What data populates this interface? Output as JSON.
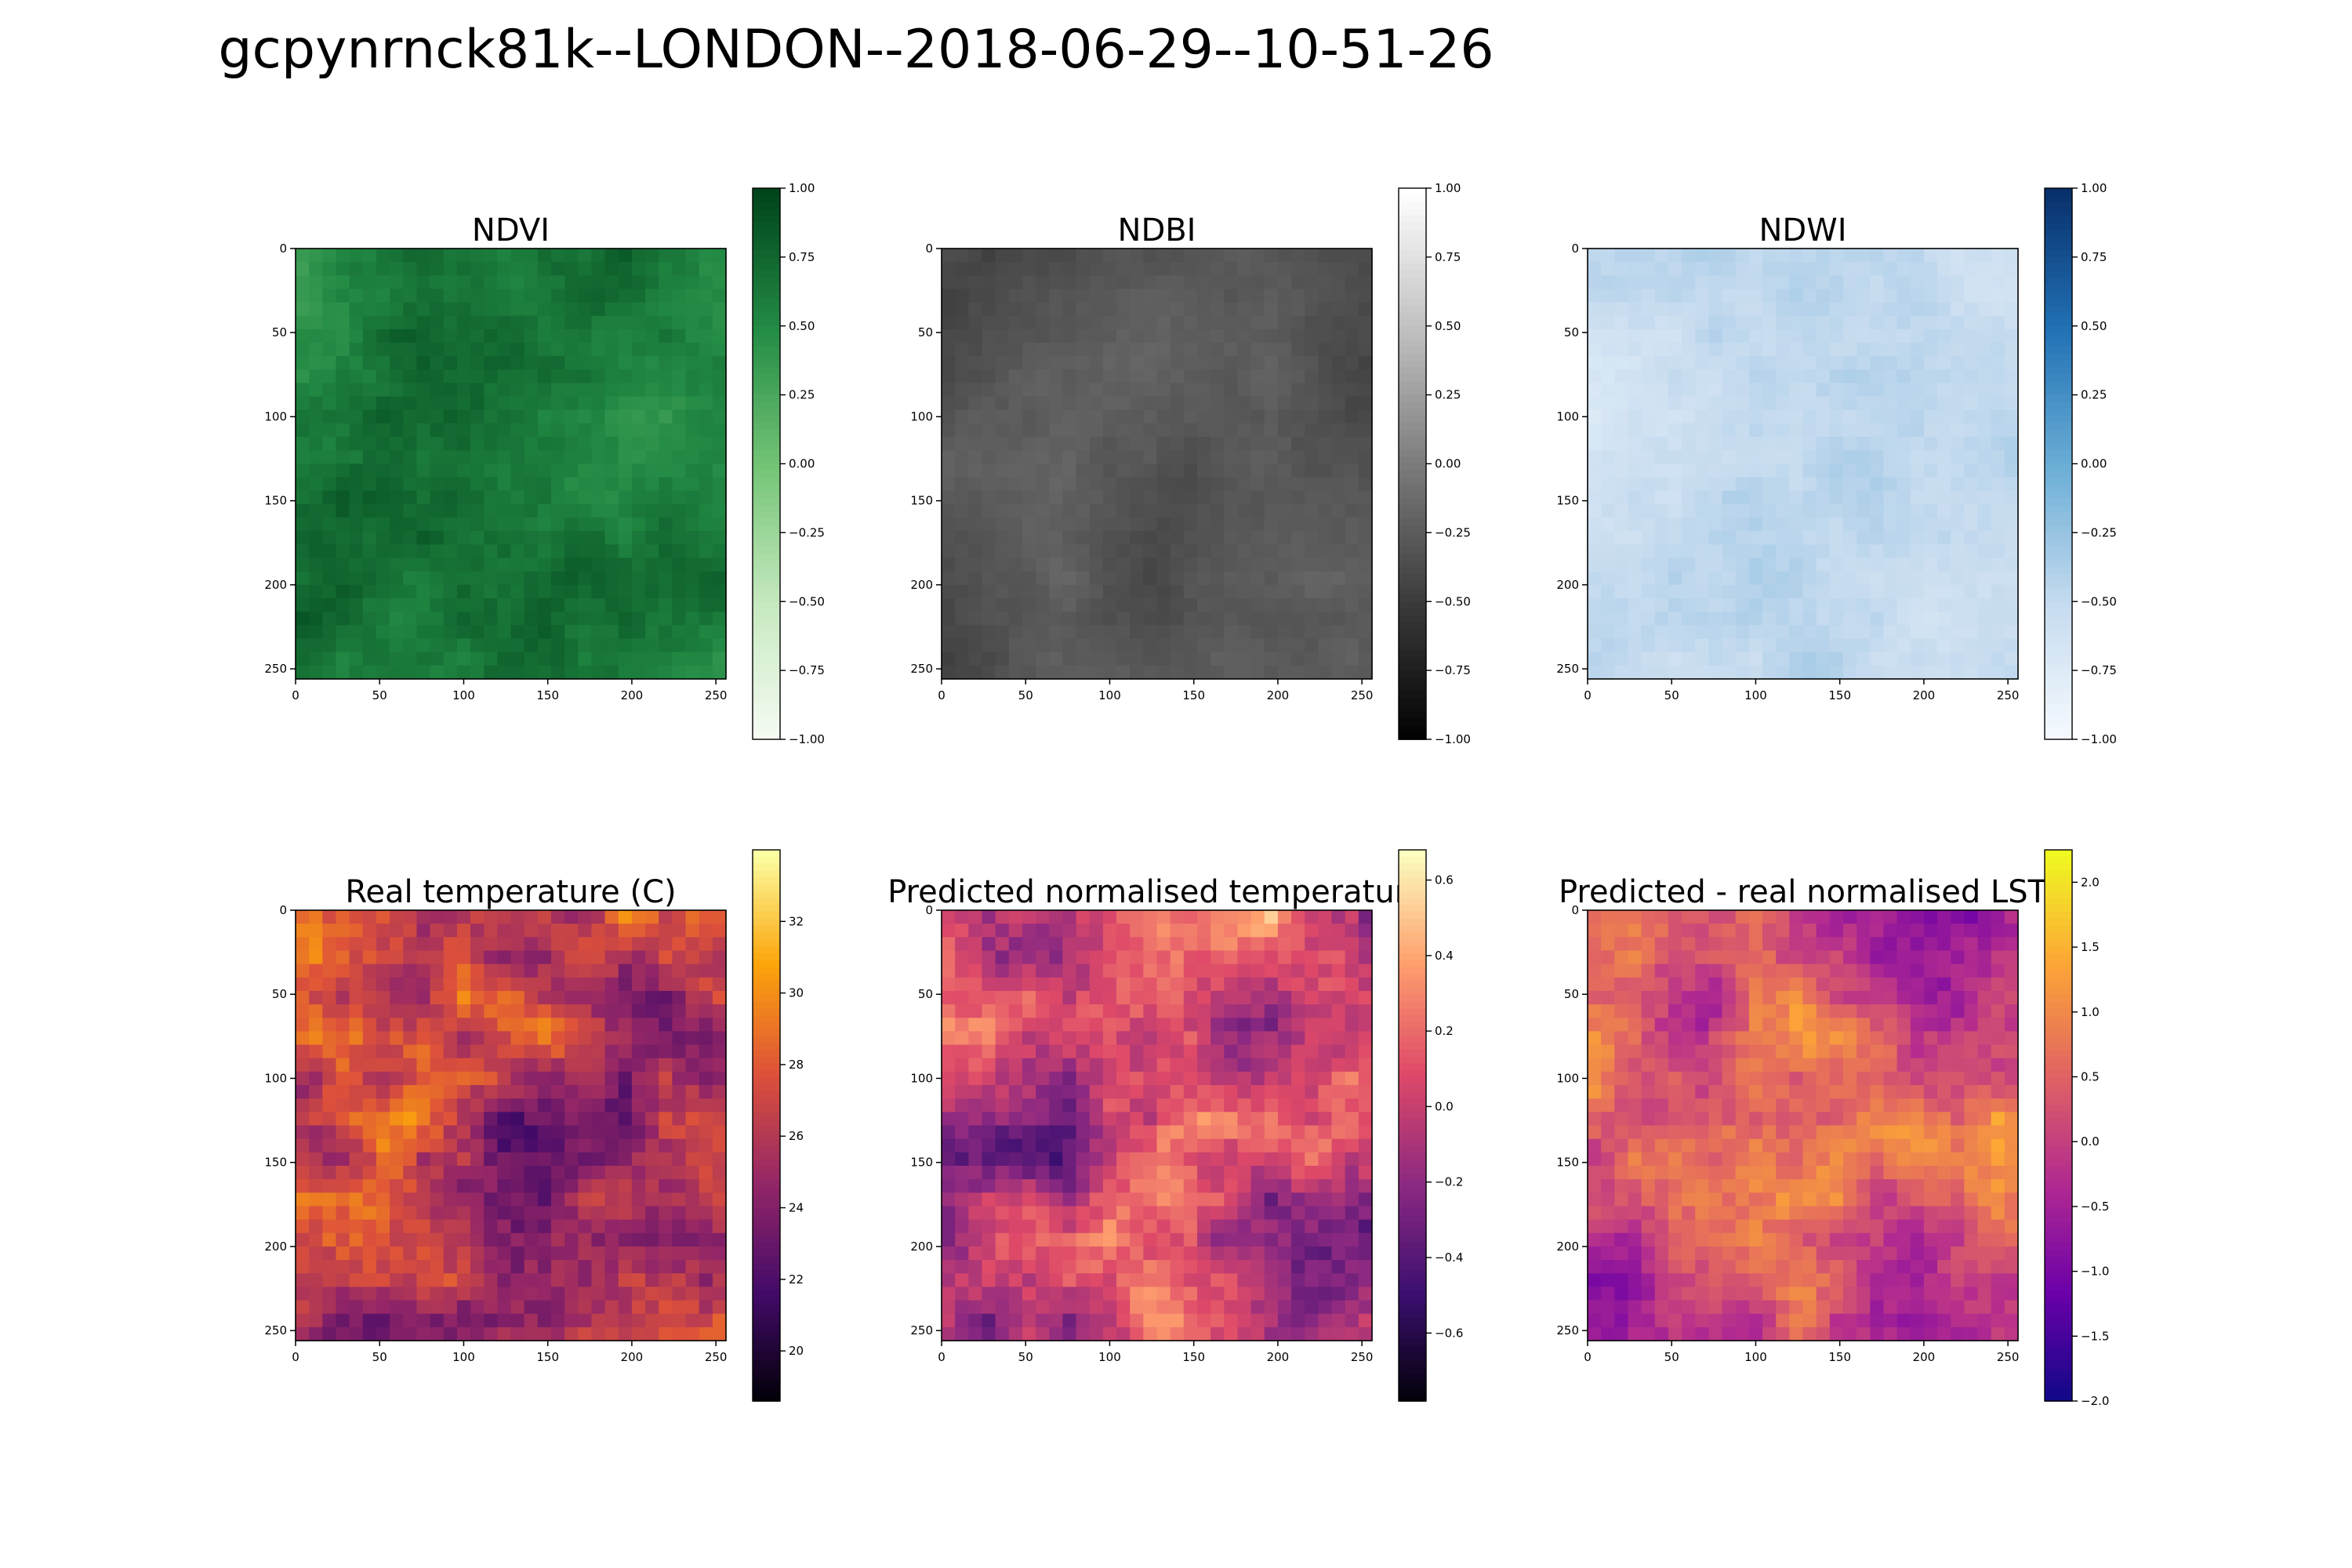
{
  "figure": {
    "title": "gcpynrnck81k--LONDON--2018-06-29--10-51-26"
  },
  "chart_data": [
    {
      "type": "heatmap",
      "title": "NDVI",
      "colormap": "Greens",
      "x_ticks": [
        "0",
        "50",
        "100",
        "150",
        "200",
        "250"
      ],
      "y_ticks": [
        "0",
        "50",
        "100",
        "150",
        "200",
        "250"
      ],
      "xlim": [
        0,
        256
      ],
      "ylim": [
        256,
        0
      ],
      "colorbar_range": [
        -1.0,
        1.0
      ],
      "colorbar_ticks": [
        "1.00",
        "0.75",
        "0.50",
        "0.25",
        "0.00",
        "−0.25",
        "−0.50",
        "−0.75",
        "−1.00"
      ],
      "colorbar_values": [
        1.0,
        0.75,
        0.5,
        0.25,
        0.0,
        -0.25,
        -0.5,
        -0.75,
        -1.0
      ],
      "typical_range": [
        0.2,
        0.95
      ]
    },
    {
      "type": "heatmap",
      "title": "NDBI",
      "colormap": "Greys_r",
      "x_ticks": [
        "0",
        "50",
        "100",
        "150",
        "200",
        "250"
      ],
      "y_ticks": [
        "0",
        "50",
        "100",
        "150",
        "200",
        "250"
      ],
      "xlim": [
        0,
        256
      ],
      "ylim": [
        256,
        0
      ],
      "colorbar_range": [
        -1.0,
        1.0
      ],
      "colorbar_ticks": [
        "1.00",
        "0.75",
        "0.50",
        "0.25",
        "0.00",
        "−0.25",
        "−0.50",
        "−0.75",
        "−1.00"
      ],
      "colorbar_values": [
        1.0,
        0.75,
        0.5,
        0.25,
        0.0,
        -0.25,
        -0.5,
        -0.75,
        -1.0
      ],
      "typical_range": [
        -0.5,
        -0.1
      ]
    },
    {
      "type": "heatmap",
      "title": "NDWI",
      "colormap": "Blues",
      "x_ticks": [
        "0",
        "50",
        "100",
        "150",
        "200",
        "250"
      ],
      "y_ticks": [
        "0",
        "50",
        "100",
        "150",
        "200",
        "250"
      ],
      "xlim": [
        0,
        256
      ],
      "ylim": [
        256,
        0
      ],
      "colorbar_range": [
        -1.0,
        1.0
      ],
      "colorbar_ticks": [
        "1.00",
        "0.75",
        "0.50",
        "0.25",
        "0.00",
        "−0.25",
        "−0.50",
        "−0.75",
        "−1.00"
      ],
      "colorbar_values": [
        1.0,
        0.75,
        0.5,
        0.25,
        0.0,
        -0.25,
        -0.5,
        -0.75,
        -1.0
      ],
      "typical_range": [
        -0.8,
        -0.25
      ]
    },
    {
      "type": "heatmap",
      "title": "Real temperature (C)",
      "colormap": "inferno",
      "x_ticks": [
        "0",
        "50",
        "100",
        "150",
        "200",
        "250"
      ],
      "y_ticks": [
        "0",
        "50",
        "100",
        "150",
        "200",
        "250"
      ],
      "xlim": [
        0,
        256
      ],
      "ylim": [
        256,
        0
      ],
      "colorbar_range": [
        18.6,
        34.0
      ],
      "colorbar_ticks": [
        "32",
        "30",
        "28",
        "26",
        "24",
        "22",
        "20"
      ],
      "colorbar_values": [
        32,
        30,
        28,
        26,
        24,
        22,
        20
      ],
      "typical_range": [
        19,
        33
      ]
    },
    {
      "type": "heatmap",
      "title": "Predicted normalised temperature",
      "colormap": "magma",
      "x_ticks": [
        "0",
        "50",
        "100",
        "150",
        "200",
        "250"
      ],
      "y_ticks": [
        "0",
        "50",
        "100",
        "150",
        "200",
        "250"
      ],
      "xlim": [
        0,
        256
      ],
      "ylim": [
        256,
        0
      ],
      "colorbar_range": [
        -0.78,
        0.68
      ],
      "colorbar_ticks": [
        "0.6",
        "0.4",
        "0.2",
        "0.0",
        "−0.2",
        "−0.4",
        "−0.6"
      ],
      "colorbar_values": [
        0.6,
        0.4,
        0.2,
        0.0,
        -0.2,
        -0.4,
        -0.6
      ],
      "typical_range": [
        -0.7,
        0.6
      ]
    },
    {
      "type": "heatmap",
      "title": "Predicted - real normalised LST",
      "colormap": "plasma",
      "x_ticks": [
        "0",
        "50",
        "100",
        "150",
        "200",
        "250"
      ],
      "y_ticks": [
        "0",
        "50",
        "100",
        "150",
        "200",
        "250"
      ],
      "xlim": [
        0,
        256
      ],
      "ylim": [
        256,
        0
      ],
      "colorbar_range": [
        -2.0,
        2.25
      ],
      "colorbar_ticks": [
        "2.0",
        "1.5",
        "1.0",
        "0.5",
        "0.0",
        "−0.5",
        "−1.0",
        "−1.5",
        "−2.0"
      ],
      "colorbar_values": [
        2.0,
        1.5,
        1.0,
        0.5,
        0.0,
        -0.5,
        -1.0,
        -1.5,
        -2.0
      ],
      "typical_range": [
        -1.5,
        1.8
      ]
    }
  ]
}
